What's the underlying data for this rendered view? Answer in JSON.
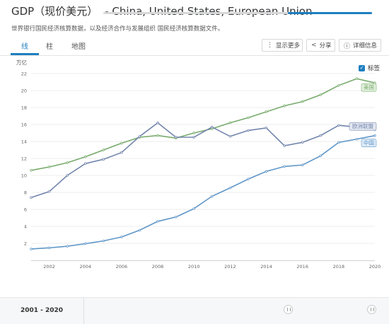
{
  "header": {
    "title_main": "GDP（现价美元）",
    "title_rest": "- China, United States, European Union",
    "subtitle": "世界银行国民经济核算数据，以及经济合作与发展组织 国民经济核算数据文件。"
  },
  "tabs": [
    {
      "label": "线"
    },
    {
      "label": "柱"
    },
    {
      "label": "地图"
    }
  ],
  "toolbar": {
    "show_more": "显示更多",
    "share": "分享",
    "details": "详细信息"
  },
  "labels_checkbox": "标签",
  "range": {
    "label": "2001 - 2020",
    "start": 2001,
    "end": 2020,
    "min": 1960,
    "max": 2020
  },
  "colors": {
    "accent": "#1e7fc0",
    "us": "#77ab6b",
    "eu": "#7285ad",
    "china": "#5f96c8"
  },
  "icons": {
    "show_more": "vertical-dots-icon",
    "share": "share-icon",
    "details": "info-icon"
  },
  "chart_data": {
    "type": "line",
    "ylabel": "万亿",
    "ylim": [
      0,
      22
    ],
    "yticks": [
      2,
      4,
      6,
      8,
      10,
      12,
      14,
      16,
      18,
      20,
      22
    ],
    "xticks": [
      2002,
      2004,
      2006,
      2008,
      2010,
      2012,
      2014,
      2016,
      2018,
      2020
    ],
    "x": [
      2001,
      2002,
      2003,
      2004,
      2005,
      2006,
      2007,
      2008,
      2009,
      2010,
      2011,
      2012,
      2013,
      2014,
      2015,
      2016,
      2017,
      2018,
      2019,
      2020
    ],
    "grid": true,
    "series": [
      {
        "name": "美国",
        "key": "us",
        "values": [
          10.6,
          11.0,
          11.5,
          12.2,
          13.0,
          13.8,
          14.5,
          14.7,
          14.4,
          15.0,
          15.5,
          16.2,
          16.8,
          17.5,
          18.2,
          18.7,
          19.5,
          20.6,
          21.4,
          20.9
        ]
      },
      {
        "name": "欧洲联盟",
        "key": "eu",
        "values": [
          7.4,
          8.1,
          10.0,
          11.4,
          11.9,
          12.7,
          14.6,
          16.2,
          14.5,
          14.5,
          15.7,
          14.6,
          15.3,
          15.6,
          13.5,
          13.9,
          14.7,
          15.9,
          15.7,
          15.4
        ]
      },
      {
        "name": "中国",
        "key": "china",
        "values": [
          1.34,
          1.47,
          1.66,
          1.96,
          2.29,
          2.75,
          3.55,
          4.59,
          5.1,
          6.09,
          7.55,
          8.53,
          9.57,
          10.48,
          11.06,
          11.23,
          12.31,
          13.89,
          14.28,
          14.69
        ]
      }
    ]
  }
}
